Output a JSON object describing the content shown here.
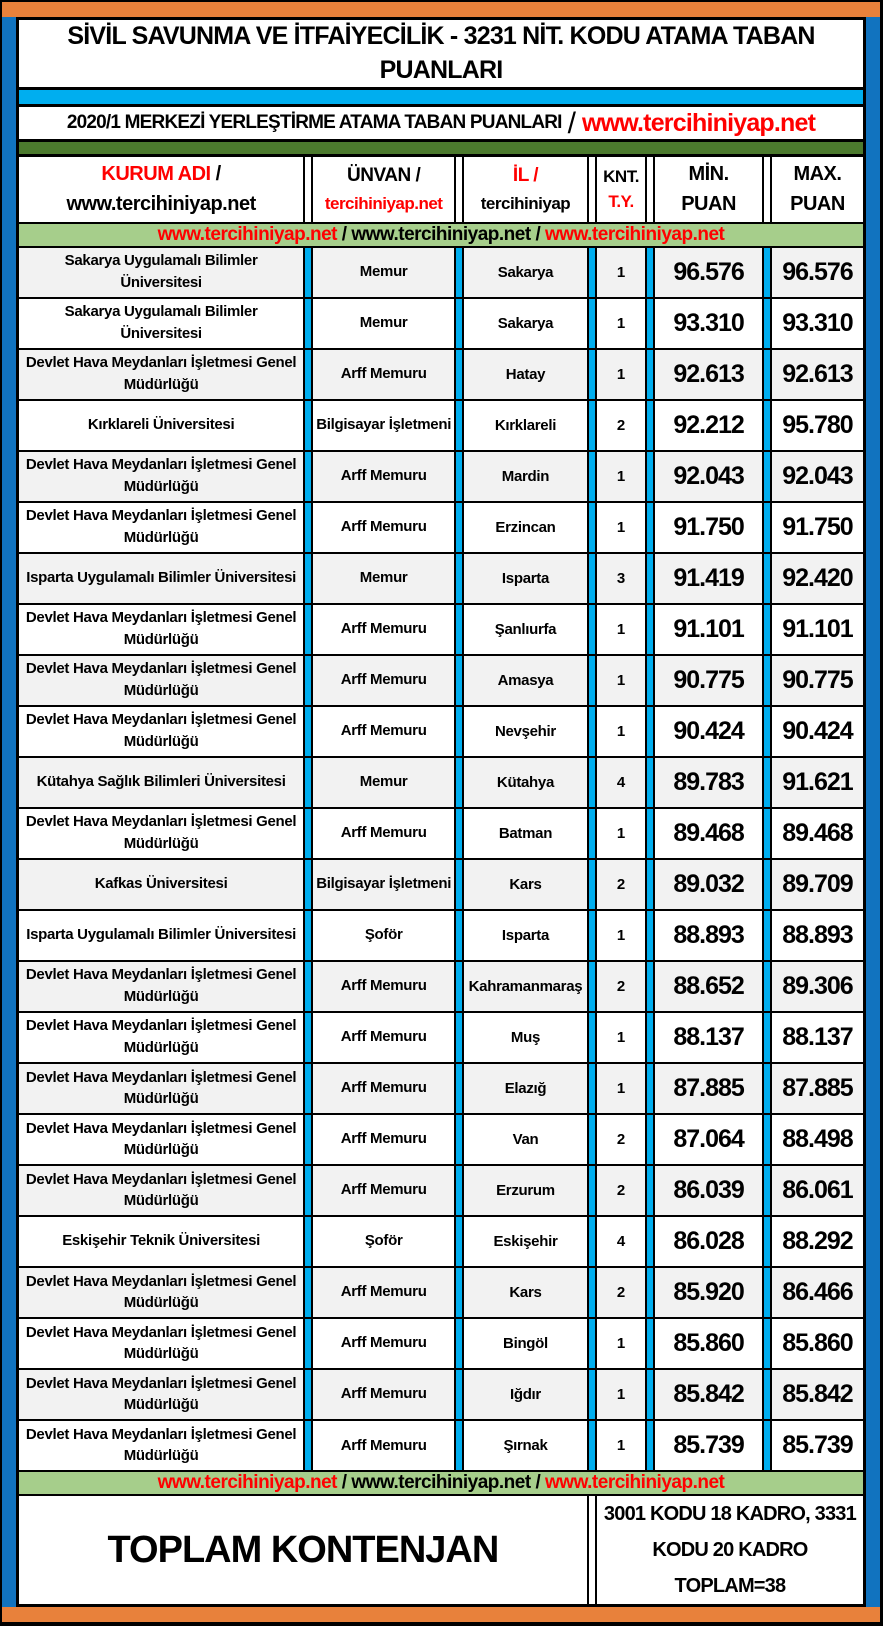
{
  "title": {
    "line1": "SİVİL SAVUNMA VE İTFAİYECİLİK - 3231 NİT. KODU ATAMA TABAN",
    "line2": "PUANLARI"
  },
  "subtitle": {
    "text": "2020/1 MERKEZİ YERLEŞTİRME ATAMA TABAN PUANLARI",
    "slash": "/",
    "link": "www.tercihiniyap.net"
  },
  "colors": {
    "orange": "#E8813B",
    "side_blue": "#1173BF",
    "cyan": "#00AEEF",
    "dark_green": "#4C7A2E",
    "light_green": "#A6CE8B",
    "yellow": "#FFFF00",
    "red": "#FF0000",
    "row_gray": "#F2F2F2"
  },
  "table": {
    "header": {
      "col1_line1_red": "KURUM ADI",
      "col1_line1_slash": " /",
      "col1_line2": "www.tercihiniyap.net",
      "col2_line1": "ÜNVAN /",
      "col2_line2": "tercihiniyap.net",
      "col3_line1": "İL /",
      "col3_line2": "tercihiniyap",
      "col4_line1": "KNT.",
      "col4_line2": "T.Y.",
      "col5_line1": "MİN.",
      "col5_line2": "PUAN",
      "col6_line1": "MAX.",
      "col6_line2": "PUAN"
    },
    "banner": {
      "part1": "www.tercihiniyap.net",
      "sep1": " / ",
      "part2": "www.tercihiniyap.net",
      "sep2": " / ",
      "part3": "www.tercihiniyap.net"
    },
    "rows": [
      {
        "kurum": "Sakarya Uygulamalı Bilimler Üniversitesi",
        "unvan": "Memur",
        "il": "Sakarya",
        "knt": "1",
        "min": "96.576",
        "max": "96.576"
      },
      {
        "kurum": "Sakarya Uygulamalı Bilimler Üniversitesi",
        "unvan": "Memur",
        "il": "Sakarya",
        "knt": "1",
        "min": "93.310",
        "max": "93.310"
      },
      {
        "kurum": "Devlet Hava Meydanları İşletmesi Genel Müdürlüğü",
        "unvan": "Arff Memuru",
        "il": "Hatay",
        "knt": "1",
        "min": "92.613",
        "max": "92.613"
      },
      {
        "kurum": "Kırklareli Üniversitesi",
        "unvan": "Bilgisayar İşletmeni",
        "il": "Kırklareli",
        "knt": "2",
        "min": "92.212",
        "max": "95.780"
      },
      {
        "kurum": "Devlet Hava Meydanları İşletmesi Genel Müdürlüğü",
        "unvan": "Arff Memuru",
        "il": "Mardin",
        "knt": "1",
        "min": "92.043",
        "max": "92.043"
      },
      {
        "kurum": "Devlet Hava Meydanları İşletmesi Genel Müdürlüğü",
        "unvan": "Arff Memuru",
        "il": "Erzincan",
        "knt": "1",
        "min": "91.750",
        "max": "91.750"
      },
      {
        "kurum": "Isparta Uygulamalı Bilimler Üniversitesi",
        "unvan": "Memur",
        "il": "Isparta",
        "knt": "3",
        "min": "91.419",
        "max": "92.420"
      },
      {
        "kurum": "Devlet Hava Meydanları İşletmesi Genel Müdürlüğü",
        "unvan": "Arff Memuru",
        "il": "Şanlıurfa",
        "knt": "1",
        "min": "91.101",
        "max": "91.101"
      },
      {
        "kurum": "Devlet Hava Meydanları İşletmesi Genel Müdürlüğü",
        "unvan": "Arff Memuru",
        "il": "Amasya",
        "knt": "1",
        "min": "90.775",
        "max": "90.775"
      },
      {
        "kurum": "Devlet Hava Meydanları İşletmesi Genel Müdürlüğü",
        "unvan": "Arff Memuru",
        "il": "Nevşehir",
        "knt": "1",
        "min": "90.424",
        "max": "90.424"
      },
      {
        "kurum": "Kütahya Sağlık Bilimleri Üniversitesi",
        "unvan": "Memur",
        "il": "Kütahya",
        "knt": "4",
        "min": "89.783",
        "max": "91.621"
      },
      {
        "kurum": "Devlet Hava Meydanları İşletmesi Genel Müdürlüğü",
        "unvan": "Arff Memuru",
        "il": "Batman",
        "knt": "1",
        "min": "89.468",
        "max": "89.468"
      },
      {
        "kurum": "Kafkas Üniversitesi",
        "unvan": "Bilgisayar İşletmeni",
        "il": "Kars",
        "knt": "2",
        "min": "89.032",
        "max": "89.709"
      },
      {
        "kurum": "Isparta Uygulamalı Bilimler Üniversitesi",
        "unvan": "Şoför",
        "il": "Isparta",
        "knt": "1",
        "min": "88.893",
        "max": "88.893"
      },
      {
        "kurum": "Devlet Hava Meydanları İşletmesi Genel Müdürlüğü",
        "unvan": "Arff Memuru",
        "il": "Kahramanmaraş",
        "knt": "2",
        "min": "88.652",
        "max": "89.306"
      },
      {
        "kurum": "Devlet Hava Meydanları İşletmesi Genel Müdürlüğü",
        "unvan": "Arff Memuru",
        "il": "Muş",
        "knt": "1",
        "min": "88.137",
        "max": "88.137"
      },
      {
        "kurum": "Devlet Hava Meydanları İşletmesi Genel Müdürlüğü",
        "unvan": "Arff Memuru",
        "il": "Elazığ",
        "knt": "1",
        "min": "87.885",
        "max": "87.885"
      },
      {
        "kurum": "Devlet Hava Meydanları İşletmesi Genel Müdürlüğü",
        "unvan": "Arff Memuru",
        "il": "Van",
        "knt": "2",
        "min": "87.064",
        "max": "88.498"
      },
      {
        "kurum": "Devlet Hava Meydanları İşletmesi Genel Müdürlüğü",
        "unvan": "Arff Memuru",
        "il": "Erzurum",
        "knt": "2",
        "min": "86.039",
        "max": "86.061"
      },
      {
        "kurum": "Eskişehir Teknik Üniversitesi",
        "unvan": "Şoför",
        "il": "Eskişehir",
        "knt": "4",
        "min": "86.028",
        "max": "88.292"
      },
      {
        "kurum": "Devlet Hava Meydanları İşletmesi Genel Müdürlüğü",
        "unvan": "Arff Memuru",
        "il": "Kars",
        "knt": "2",
        "min": "85.920",
        "max": "86.466"
      },
      {
        "kurum": "Devlet Hava Meydanları İşletmesi Genel Müdürlüğü",
        "unvan": "Arff Memuru",
        "il": "Bingöl",
        "knt": "1",
        "min": "85.860",
        "max": "85.860"
      },
      {
        "kurum": "Devlet Hava Meydanları İşletmesi Genel Müdürlüğü",
        "unvan": "Arff Memuru",
        "il": "Iğdır",
        "knt": "1",
        "min": "85.842",
        "max": "85.842"
      },
      {
        "kurum": "Devlet Hava Meydanları İşletmesi Genel Müdürlüğü",
        "unvan": "Arff Memuru",
        "il": "Şırnak",
        "knt": "1",
        "min": "85.739",
        "max": "85.739"
      }
    ],
    "footer": {
      "left": "TOPLAM KONTENJAN",
      "right_line1": "3001 KODU 18 KADRO, 3331",
      "right_line2": "KODU 20 KADRO TOPLAM=38"
    }
  }
}
